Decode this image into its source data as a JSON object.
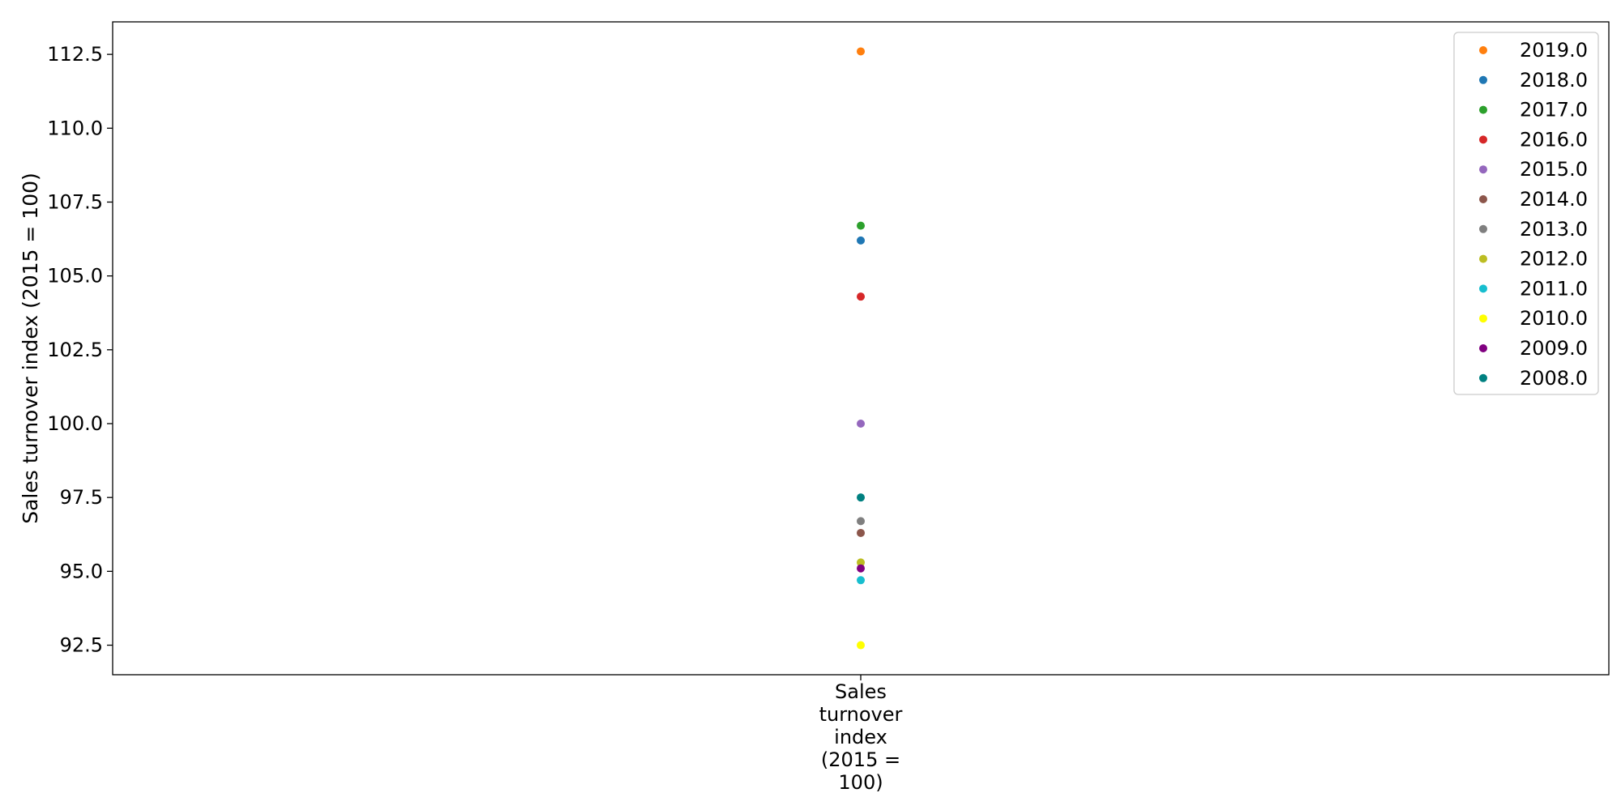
{
  "chart_data": {
    "type": "scatter",
    "categories": [
      "Sales turnover index (2015 = 100)"
    ],
    "category_label_lines": [
      "Sales",
      "turnover",
      "index",
      "(2015 =",
      "100)"
    ],
    "ylabel": "Sales turnover index (2015 = 100)",
    "xlabel": "",
    "ylim": [
      91.5,
      113.6
    ],
    "yticks": [
      "92.5",
      "95.0",
      "97.5",
      "100.0",
      "102.5",
      "105.0",
      "107.5",
      "110.0",
      "112.5"
    ],
    "grid": false,
    "legend_position": "top-right",
    "series": [
      {
        "name": "2019.0",
        "color": "#ff7f0e",
        "values": [
          112.6
        ]
      },
      {
        "name": "2018.0",
        "color": "#1f77b4",
        "values": [
          106.2
        ]
      },
      {
        "name": "2017.0",
        "color": "#2ca02c",
        "values": [
          106.7
        ]
      },
      {
        "name": "2016.0",
        "color": "#d62728",
        "values": [
          104.3
        ]
      },
      {
        "name": "2015.0",
        "color": "#9467bd",
        "values": [
          100.0
        ]
      },
      {
        "name": "2014.0",
        "color": "#8c564b",
        "values": [
          96.3
        ]
      },
      {
        "name": "2013.0",
        "color": "#7f7f7f",
        "values": [
          96.7
        ]
      },
      {
        "name": "2012.0",
        "color": "#bcbd22",
        "values": [
          95.3
        ]
      },
      {
        "name": "2011.0",
        "color": "#17becf",
        "values": [
          94.7
        ]
      },
      {
        "name": "2010.0",
        "color": "#ffff00",
        "values": [
          92.5
        ]
      },
      {
        "name": "2009.0",
        "color": "#800080",
        "values": [
          95.1
        ]
      },
      {
        "name": "2008.0",
        "color": "#008080",
        "values": [
          97.5
        ]
      }
    ]
  }
}
